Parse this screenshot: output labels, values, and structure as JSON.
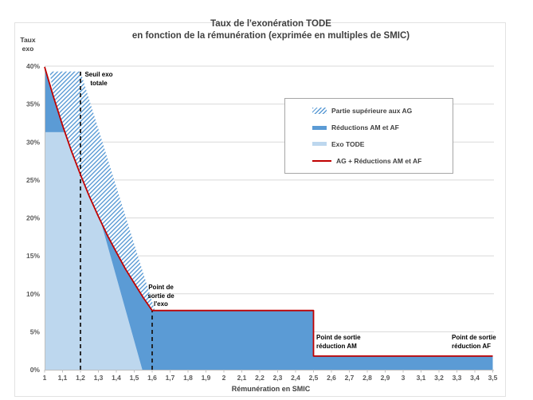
{
  "title": {
    "line1": "Taux de l'exonération TODE",
    "line2": "en fonction de la rémunération (exprimée en multiples de SMIC)"
  },
  "y_axis_title_lines": [
    "Taux",
    "exo"
  ],
  "x_axis_title": "Rémunération en SMIC",
  "colors": {
    "medium_blue": "#5b9bd5",
    "light_blue": "#bdd7ee",
    "red": "#c00000",
    "gridline": "#d9d9d9",
    "axis": "#bfbfbf",
    "tick_text": "#595959",
    "dashed_line": "#1a1a1a"
  },
  "legend": [
    {
      "label": "Partie supérieure aux AG",
      "swatch": "hatch"
    },
    {
      "label": "Réductions AM et AF",
      "swatch": "solid-medium"
    },
    {
      "label": "Exo TODE",
      "swatch": "solid-light"
    },
    {
      "label": "AG + Réductions AM et AF",
      "swatch": "red-line"
    }
  ],
  "annotations": {
    "seuil": {
      "x": 1.2,
      "lines": [
        "Seuil exo",
        "totale"
      ]
    },
    "sortie_exo": {
      "x": 1.6,
      "lines": [
        "Point de",
        "sortie de",
        "l'exo"
      ]
    },
    "sortie_am": {
      "x": 2.5,
      "lines": [
        "Point de sortie",
        "réduction AM"
      ]
    },
    "sortie_af": {
      "x": 3.5,
      "lines": [
        "Point de sortie",
        "réduction AF"
      ]
    }
  },
  "chart_data": {
    "type": "area",
    "title": "Taux de l'exonération TODE en fonction de la rémunération (exprimée en multiples de SMIC)",
    "xlabel": "Rémunération en SMIC",
    "ylabel": "Taux exo",
    "x_range": [
      1,
      3.5
    ],
    "y_range": [
      0,
      40
    ],
    "grid": true,
    "legend_position": "upper right",
    "x_tick_labels": [
      "1",
      "1,1",
      "1,2",
      "1,3",
      "1,4",
      "1,5",
      "1,6",
      "1,7",
      "1,8",
      "1,9",
      "2",
      "2,1",
      "2,2",
      "2,3",
      "2,4",
      "2,5",
      "2,6",
      "2,7",
      "2,8",
      "2,9",
      "3",
      "3,1",
      "3,2",
      "3,3",
      "3,4",
      "3,5"
    ],
    "x_tick_values": [
      1,
      1.1,
      1.2,
      1.3,
      1.4,
      1.5,
      1.6,
      1.7,
      1.8,
      1.9,
      2,
      2.1,
      2.2,
      2.3,
      2.4,
      2.5,
      2.6,
      2.7,
      2.8,
      2.9,
      3,
      3.1,
      3.2,
      3.3,
      3.4,
      3.5
    ],
    "y_tick_labels": [
      "0%",
      "5%",
      "10%",
      "15%",
      "20%",
      "25%",
      "30%",
      "35%",
      "40%"
    ],
    "y_tick_values": [
      0,
      5,
      10,
      15,
      20,
      25,
      30,
      35,
      40
    ],
    "series": [
      {
        "name": "Exo TODE",
        "kind": "area",
        "color": "#bdd7ee",
        "polygons": [
          [
            [
              1,
              0
            ],
            [
              1,
              31.3
            ],
            [
              1.115,
              31.3
            ],
            [
              1.15,
              28.8
            ],
            [
              1.2,
              25.7
            ],
            [
              1.25,
              22.8
            ],
            [
              1.3,
              20.2
            ],
            [
              1.31,
              19.8
            ],
            [
              1.545,
              0
            ]
          ]
        ]
      },
      {
        "name": "Réductions AM et AF",
        "kind": "area",
        "color": "#5b9bd5",
        "polygons": [
          [
            [
              1,
              31.3
            ],
            [
              1,
              39.9
            ],
            [
              1.05,
              35.9
            ],
            [
              1.1,
              32.2
            ],
            [
              1.115,
              31.3
            ]
          ],
          [
            [
              1.31,
              19.8
            ],
            [
              1.35,
              17.7
            ],
            [
              1.4,
              15.5
            ],
            [
              1.45,
              13.3
            ],
            [
              1.5,
              11.4
            ],
            [
              1.55,
              9.5
            ],
            [
              1.6,
              7.8
            ],
            [
              2.5,
              7.8
            ],
            [
              2.5,
              1.8
            ],
            [
              3.5,
              1.8
            ],
            [
              3.5,
              0
            ],
            [
              1.545,
              0
            ]
          ]
        ]
      },
      {
        "name": "Partie supérieure aux AG",
        "kind": "hatch-area",
        "color": "#5b9bd5",
        "polygons": [
          [
            [
              1.028,
              39.3
            ],
            [
              1.2,
              39.3
            ],
            [
              1.615,
              7.8
            ],
            [
              1.6,
              7.8
            ],
            [
              1.55,
              9.5
            ],
            [
              1.5,
              11.4
            ],
            [
              1.45,
              13.3
            ],
            [
              1.4,
              15.5
            ],
            [
              1.35,
              17.7
            ],
            [
              1.3,
              20.2
            ],
            [
              1.25,
              22.8
            ],
            [
              1.2,
              25.7
            ],
            [
              1.15,
              28.8
            ],
            [
              1.115,
              31.3
            ],
            [
              1.1,
              32.2
            ],
            [
              1.05,
              35.9
            ]
          ]
        ]
      },
      {
        "name": "AG + Réductions AM et AF",
        "kind": "line",
        "color": "#c00000",
        "points": [
          [
            1,
            39.9
          ],
          [
            1.05,
            35.9
          ],
          [
            1.1,
            32.2
          ],
          [
            1.15,
            28.8
          ],
          [
            1.2,
            25.7
          ],
          [
            1.25,
            22.8
          ],
          [
            1.3,
            20.2
          ],
          [
            1.35,
            17.7
          ],
          [
            1.4,
            15.5
          ],
          [
            1.45,
            13.3
          ],
          [
            1.5,
            11.4
          ],
          [
            1.55,
            9.5
          ],
          [
            1.6,
            7.8
          ],
          [
            2.5,
            7.8
          ],
          [
            2.5,
            1.8
          ],
          [
            3.5,
            1.8
          ]
        ]
      }
    ],
    "reference_lines": [
      {
        "x": 1.2,
        "y_top": 39.3,
        "style": "dashed",
        "label": "Seuil exo totale"
      },
      {
        "x": 1.6,
        "y_top": 7.8,
        "style": "dashed",
        "label": "Point de sortie de l'exo"
      }
    ]
  }
}
